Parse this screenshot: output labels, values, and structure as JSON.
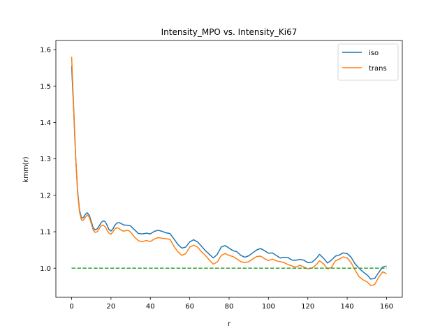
{
  "chart_data": {
    "type": "line",
    "title": "Intensity_MPO vs. Intensity_Ki67",
    "xlabel": "r",
    "ylabel": "kmm(r)",
    "xlim": [
      -8,
      168
    ],
    "ylim": [
      0.92,
      1.625
    ],
    "xticks": [
      0,
      20,
      40,
      60,
      80,
      100,
      120,
      140,
      160
    ],
    "yticks": [
      1.0,
      1.1,
      1.2,
      1.3,
      1.4,
      1.5,
      1.6
    ],
    "xtick_labels": [
      "0",
      "20",
      "40",
      "60",
      "80",
      "100",
      "120",
      "140",
      "160"
    ],
    "ytick_labels": [
      "1.0",
      "1.1",
      "1.2",
      "1.3",
      "1.4",
      "1.5",
      "1.6"
    ],
    "grid": false,
    "legend_position": "top-right",
    "series": [
      {
        "name": "iso",
        "color": "#1f77b4",
        "x": [
          0,
          1,
          2,
          3,
          4,
          5,
          6,
          7,
          8,
          9,
          10,
          11,
          12,
          13,
          14,
          15,
          16,
          17,
          18,
          19,
          20,
          21,
          22,
          23,
          24,
          25,
          26,
          27,
          28,
          29,
          30,
          32,
          34,
          36,
          38,
          40,
          42,
          44,
          46,
          48,
          50,
          52,
          54,
          56,
          58,
          60,
          62,
          64,
          66,
          68,
          70,
          72,
          74,
          76,
          78,
          80,
          82,
          84,
          86,
          88,
          90,
          92,
          94,
          96,
          98,
          100,
          102,
          104,
          106,
          108,
          110,
          112,
          114,
          116,
          118,
          120,
          122,
          124,
          126,
          128,
          130,
          132,
          134,
          136,
          138,
          140,
          142,
          144,
          146,
          148,
          150,
          152,
          154,
          156,
          158,
          160
        ],
        "y": [
          1.555,
          1.44,
          1.31,
          1.215,
          1.16,
          1.138,
          1.139,
          1.148,
          1.152,
          1.145,
          1.128,
          1.11,
          1.105,
          1.108,
          1.116,
          1.125,
          1.13,
          1.128,
          1.118,
          1.106,
          1.102,
          1.108,
          1.118,
          1.124,
          1.125,
          1.123,
          1.12,
          1.118,
          1.118,
          1.117,
          1.116,
          1.105,
          1.095,
          1.094,
          1.096,
          1.094,
          1.101,
          1.104,
          1.101,
          1.097,
          1.095,
          1.08,
          1.065,
          1.055,
          1.058,
          1.072,
          1.078,
          1.072,
          1.06,
          1.048,
          1.038,
          1.028,
          1.038,
          1.058,
          1.062,
          1.055,
          1.048,
          1.045,
          1.035,
          1.03,
          1.034,
          1.042,
          1.05,
          1.054,
          1.048,
          1.041,
          1.042,
          1.035,
          1.028,
          1.03,
          1.029,
          1.022,
          1.022,
          1.024,
          1.022,
          1.015,
          1.016,
          1.025,
          1.038,
          1.027,
          1.014,
          1.022,
          1.033,
          1.036,
          1.042,
          1.04,
          1.03,
          1.012,
          1.0,
          0.99,
          0.982,
          0.97,
          0.972,
          0.988,
          1.003,
          1.006
        ]
      },
      {
        "name": "trans",
        "color": "#ff7f0e",
        "x": [
          0,
          1,
          2,
          3,
          4,
          5,
          6,
          7,
          8,
          9,
          10,
          11,
          12,
          13,
          14,
          15,
          16,
          17,
          18,
          19,
          20,
          21,
          22,
          23,
          24,
          25,
          26,
          27,
          28,
          29,
          30,
          32,
          34,
          36,
          38,
          40,
          42,
          44,
          46,
          48,
          50,
          52,
          54,
          56,
          58,
          60,
          62,
          64,
          66,
          68,
          70,
          72,
          74,
          76,
          78,
          80,
          82,
          84,
          86,
          88,
          90,
          92,
          94,
          96,
          98,
          100,
          102,
          104,
          106,
          108,
          110,
          112,
          114,
          116,
          118,
          120,
          122,
          124,
          126,
          128,
          130,
          132,
          134,
          136,
          138,
          140,
          142,
          144,
          146,
          148,
          150,
          152,
          154,
          156,
          158,
          160
        ],
        "y": [
          1.58,
          1.45,
          1.315,
          1.21,
          1.155,
          1.132,
          1.132,
          1.14,
          1.146,
          1.14,
          1.122,
          1.104,
          1.098,
          1.1,
          1.108,
          1.116,
          1.118,
          1.114,
          1.104,
          1.096,
          1.093,
          1.1,
          1.108,
          1.111,
          1.109,
          1.105,
          1.102,
          1.102,
          1.104,
          1.103,
          1.099,
          1.085,
          1.075,
          1.073,
          1.076,
          1.073,
          1.08,
          1.084,
          1.082,
          1.081,
          1.079,
          1.06,
          1.045,
          1.035,
          1.04,
          1.058,
          1.063,
          1.058,
          1.045,
          1.035,
          1.022,
          1.011,
          1.017,
          1.035,
          1.04,
          1.035,
          1.032,
          1.025,
          1.018,
          1.015,
          1.018,
          1.025,
          1.032,
          1.033,
          1.026,
          1.021,
          1.025,
          1.02,
          1.018,
          1.015,
          1.01,
          1.006,
          1.003,
          1.008,
          1.003,
          0.998,
          1.0,
          1.008,
          1.02,
          1.012,
          0.998,
          1.002,
          1.02,
          1.025,
          1.031,
          1.028,
          1.015,
          0.995,
          0.977,
          0.968,
          0.963,
          0.952,
          0.955,
          0.975,
          0.99,
          0.985
        ]
      },
      {
        "name": "",
        "color": "#2ca02c",
        "style": "dashed",
        "x": [
          0,
          160
        ],
        "y": [
          1.0,
          1.0
        ]
      }
    ]
  }
}
